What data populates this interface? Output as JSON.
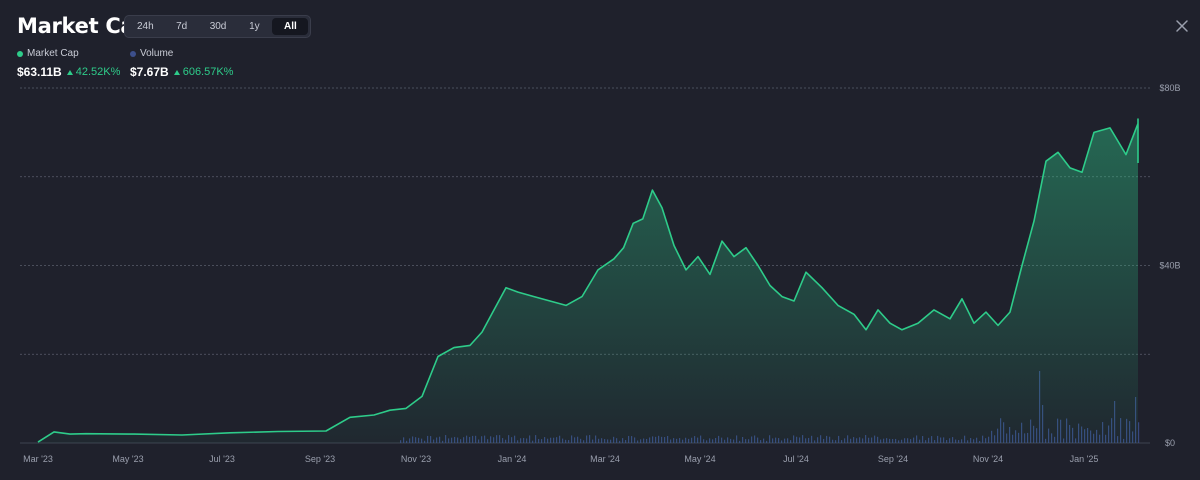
{
  "header": {
    "title": "Market Cap",
    "ranges": [
      "24h",
      "7d",
      "30d",
      "1y",
      "All"
    ],
    "active_range": "All"
  },
  "legend": {
    "market_cap": {
      "label": "Market Cap",
      "value": "$63.11B",
      "change": "42.52K%",
      "color": "#2ecc8a"
    },
    "volume": {
      "label": "Volume",
      "value": "$7.67B",
      "change": "606.57K%",
      "color": "#3c4f8c"
    }
  },
  "chart_data": {
    "type": "area",
    "title": "",
    "xlabel": "",
    "ylabel": "",
    "x_ticks": [
      "Mar '23",
      "May '23",
      "Jul '23",
      "Sep '23",
      "Nov '23",
      "Jan '24",
      "Mar '24",
      "May '24",
      "Jul '24",
      "Sep '24",
      "Nov '24",
      "Jan '25"
    ],
    "y_ticks": [
      "$0",
      "$40B",
      "$80B"
    ],
    "ylim": [
      0,
      80
    ],
    "grid": true,
    "series": [
      {
        "name": "Market Cap",
        "unit": "B USD",
        "x": [
          "Mar '23",
          "Mar '23",
          "Mar '23",
          "Apr '23",
          "May '23",
          "Jun '23",
          "Jul '23",
          "Aug '23",
          "Sep '23",
          "Sep '23",
          "Oct '23",
          "Oct '23",
          "Oct '23",
          "Nov '23",
          "Nov '23",
          "Nov '23",
          "Dec '23",
          "Dec '23",
          "Dec '23",
          "Dec '23",
          "Jan '24",
          "Jan '24",
          "Jan '24",
          "Feb '24",
          "Feb '24",
          "Feb '24",
          "Mar '24",
          "Mar '24",
          "Mar '24",
          "Mar '24",
          "Mar '24",
          "Apr '24",
          "Apr '24",
          "Apr '24",
          "Apr '24",
          "May '24",
          "May '24",
          "May '24",
          "May '24",
          "Jun '24",
          "Jun '24",
          "Jun '24",
          "Jun '24",
          "Jul '24",
          "Jul '24",
          "Jul '24",
          "Aug '24",
          "Aug '24",
          "Aug '24",
          "Aug '24",
          "Sep '24",
          "Sep '24",
          "Sep '24",
          "Oct '24",
          "Oct '24",
          "Oct '24",
          "Oct '24",
          "Nov '24",
          "Nov '24",
          "Nov '24",
          "Nov '24",
          "Dec '24",
          "Dec '24",
          "Dec '24",
          "Dec '24",
          "Jan '25",
          "Jan '25",
          "Jan '25",
          "Feb '25",
          "Feb '25",
          "Feb '25"
        ],
        "y": [
          0.2,
          2.5,
          2.0,
          2.1,
          2.0,
          1.8,
          2.3,
          2.6,
          2.7,
          5.8,
          6.3,
          7.4,
          7.8,
          10.5,
          19.5,
          21.5,
          22.0,
          25.0,
          30.0,
          35.0,
          34.0,
          33.0,
          32.0,
          31.0,
          33.0,
          39.0,
          41.5,
          44.0,
          49.5,
          50.5,
          57.0,
          53.0,
          44.5,
          39.0,
          42.0,
          38.0,
          45.5,
          42.0,
          44.0,
          40.0,
          35.5,
          33.0,
          32.0,
          38.5,
          35.0,
          31.0,
          29.0,
          25.5,
          30.0,
          27.0,
          25.5,
          27.0,
          30.0,
          28.0,
          32.5,
          27.0,
          29.5,
          26.5,
          29.5,
          40.0,
          50.0,
          63.5,
          65.5,
          62.0,
          61.0,
          70.0,
          71.0,
          65.0,
          72.0,
          73.0,
          63.1
        ]
      },
      {
        "name": "Volume",
        "unit": "B USD",
        "y_hint": "small bars along baseline, peaks up to ~17B around Dec '24",
        "y": []
      }
    ]
  }
}
